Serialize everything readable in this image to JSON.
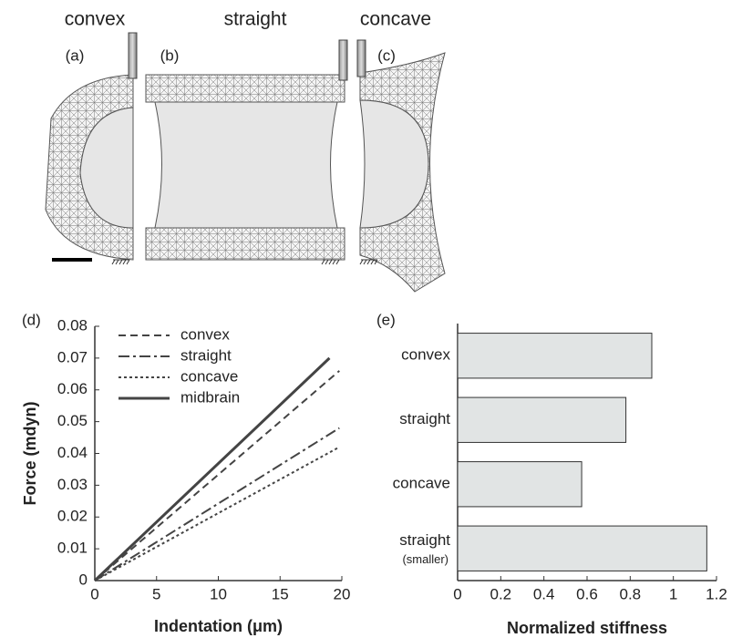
{
  "panels": {
    "titles": [
      "convex",
      "straight",
      "concave"
    ],
    "labels": [
      "(a)",
      "(b)",
      "(c)"
    ]
  },
  "chart_data": [
    {
      "type": "line",
      "panel_label": "(d)",
      "x_label": "Indentation (μm)",
      "y_label": "Force (mdyn)",
      "xlim": [
        0,
        20
      ],
      "xticks": [
        0,
        5,
        10,
        15,
        20
      ],
      "ylim": [
        0,
        0.08
      ],
      "yticks": [
        0,
        0.01,
        0.02,
        0.03,
        0.04,
        0.05,
        0.06,
        0.07,
        0.08
      ],
      "legend": "upper-left",
      "series": [
        {
          "name": "convex",
          "color": "#444444",
          "line_style": "dashed",
          "x": [
            0,
            19.8
          ],
          "values": [
            0,
            0.066
          ]
        },
        {
          "name": "straight",
          "color": "#444444",
          "line_style": "dashdot",
          "x": [
            0,
            19.8
          ],
          "values": [
            0,
            0.048
          ]
        },
        {
          "name": "concave",
          "color": "#444444",
          "line_style": "dotted",
          "x": [
            0,
            19.8
          ],
          "values": [
            0,
            0.042
          ]
        },
        {
          "name": "midbrain",
          "color": "#444444",
          "line_style": "solid",
          "x": [
            0,
            19.0
          ],
          "values": [
            0,
            0.07
          ]
        }
      ]
    },
    {
      "type": "hbar",
      "panel_label": "(e)",
      "x_label": "Normalized stiffness",
      "categories": [
        "convex",
        "straight",
        "concave",
        "straight"
      ],
      "category_notes": [
        null,
        null,
        null,
        "(smaller)"
      ],
      "values": [
        0.9,
        0.78,
        0.575,
        1.155
      ],
      "color": "#e1e4e4",
      "xlim": [
        0,
        1.2
      ],
      "xticks": [
        0,
        0.2,
        0.4,
        0.6,
        0.8,
        1,
        1.2
      ]
    }
  ]
}
